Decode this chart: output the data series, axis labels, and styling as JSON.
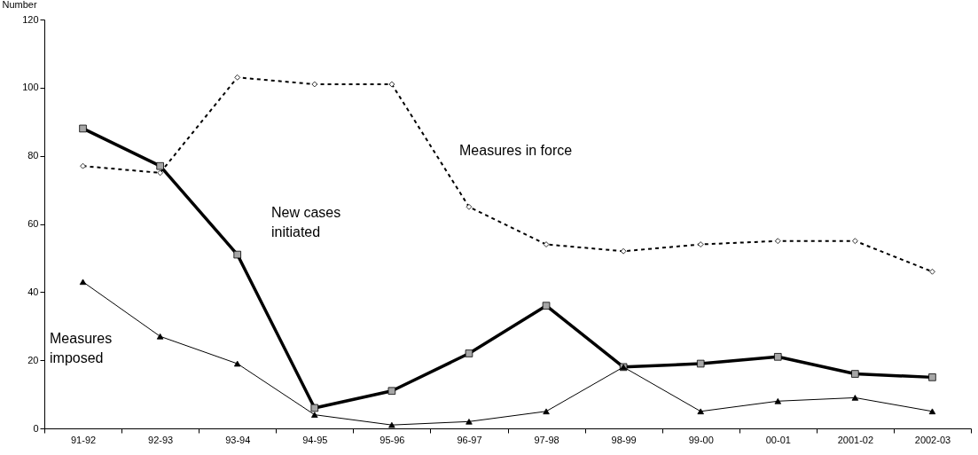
{
  "chart_data": {
    "type": "line",
    "ylabel": "Number",
    "categories": [
      "91-92",
      "92-93",
      "93-94",
      "94-95",
      "95-96",
      "96-97",
      "97-98",
      "98-99",
      "99-00",
      "00-01",
      "2001-02",
      "2002-03"
    ],
    "ylim": [
      0,
      120
    ],
    "yticks": [
      0,
      20,
      40,
      60,
      80,
      100,
      120
    ],
    "grid": false,
    "series": [
      {
        "name": "Measures in force",
        "color": "#000000",
        "marker": "diamond",
        "line_style": "dashed",
        "values": [
          77,
          75,
          103,
          101,
          101,
          65,
          54,
          52,
          54,
          55,
          55,
          46
        ]
      },
      {
        "name": "New cases initiated",
        "color": "#000000",
        "marker": "square",
        "line_style": "solid",
        "values": [
          88,
          77,
          51,
          6,
          11,
          22,
          36,
          18,
          19,
          21,
          16,
          15
        ]
      },
      {
        "name": "Measures imposed",
        "color": "#000000",
        "marker": "triangle",
        "line_style": "solid",
        "values": [
          43,
          27,
          19,
          4,
          1,
          2,
          5,
          18,
          5,
          8,
          9,
          5
        ]
      }
    ]
  }
}
